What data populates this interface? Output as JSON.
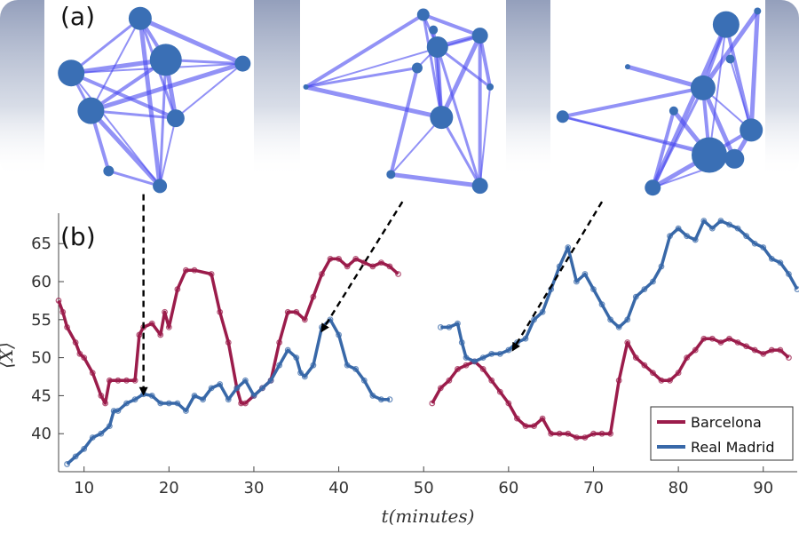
{
  "panels": {
    "a_label": "(a)",
    "b_label": "(b)"
  },
  "colors": {
    "barcelona": "#9b1c4b",
    "real_madrid": "#3868a8",
    "network_edge": "#4a4af0",
    "network_node": "#3a6fb5",
    "header_band": "#8e9ab8"
  },
  "networks": [
    {
      "nodes": [
        [
          0.45,
          0.06,
          13
        ],
        [
          0.1,
          0.35,
          15
        ],
        [
          0.58,
          0.28,
          18
        ],
        [
          0.97,
          0.3,
          9
        ],
        [
          0.2,
          0.55,
          15
        ],
        [
          0.63,
          0.59,
          10
        ],
        [
          0.29,
          0.87,
          6
        ],
        [
          0.55,
          0.95,
          8
        ]
      ],
      "edges": [
        [
          0,
          1
        ],
        [
          0,
          2
        ],
        [
          0,
          3
        ],
        [
          1,
          2
        ],
        [
          1,
          3
        ],
        [
          2,
          3
        ],
        [
          0,
          4
        ],
        [
          1,
          4
        ],
        [
          2,
          4
        ],
        [
          2,
          5
        ],
        [
          1,
          5
        ],
        [
          4,
          5
        ],
        [
          4,
          6
        ],
        [
          4,
          7
        ],
        [
          5,
          7
        ],
        [
          6,
          7
        ],
        [
          1,
          7
        ],
        [
          0,
          7
        ],
        [
          3,
          4
        ],
        [
          2,
          7
        ],
        [
          0,
          5
        ],
        [
          3,
          5
        ]
      ]
    },
    {
      "nodes": [
        [
          0.6,
          0.04,
          7
        ],
        [
          0.67,
          0.21,
          12
        ],
        [
          0.88,
          0.15,
          9
        ],
        [
          0.57,
          0.32,
          6
        ],
        [
          0.93,
          0.42,
          4
        ],
        [
          0.69,
          0.58,
          13
        ],
        [
          0.02,
          0.42,
          3
        ],
        [
          0.44,
          0.88,
          5
        ],
        [
          0.88,
          0.94,
          9
        ],
        [
          0.65,
          0.12,
          5
        ]
      ],
      "edges": [
        [
          0,
          1
        ],
        [
          0,
          2
        ],
        [
          1,
          2
        ],
        [
          1,
          3
        ],
        [
          1,
          5
        ],
        [
          2,
          5
        ],
        [
          2,
          4
        ],
        [
          6,
          0
        ],
        [
          6,
          5
        ],
        [
          6,
          3
        ],
        [
          5,
          7
        ],
        [
          5,
          8
        ],
        [
          7,
          8
        ],
        [
          1,
          8
        ],
        [
          2,
          8
        ],
        [
          4,
          8
        ],
        [
          3,
          7
        ],
        [
          0,
          5
        ],
        [
          9,
          5
        ],
        [
          1,
          4
        ],
        [
          6,
          2
        ]
      ]
    },
    {
      "nodes": [
        [
          0.83,
          0.1,
          15
        ],
        [
          0.98,
          0.03,
          4
        ],
        [
          0.72,
          0.43,
          14
        ],
        [
          0.58,
          0.55,
          5
        ],
        [
          0.75,
          0.78,
          20
        ],
        [
          0.87,
          0.8,
          11
        ],
        [
          0.95,
          0.65,
          13
        ],
        [
          0.48,
          0.95,
          9
        ],
        [
          0.05,
          0.58,
          7
        ],
        [
          0.36,
          0.32,
          3
        ],
        [
          0.85,
          0.28,
          5
        ]
      ],
      "edges": [
        [
          0,
          2
        ],
        [
          0,
          4
        ],
        [
          0,
          6
        ],
        [
          1,
          6
        ],
        [
          1,
          2
        ],
        [
          2,
          4
        ],
        [
          2,
          5
        ],
        [
          2,
          7
        ],
        [
          3,
          4
        ],
        [
          4,
          5
        ],
        [
          4,
          6
        ],
        [
          5,
          6
        ],
        [
          4,
          7
        ],
        [
          7,
          5
        ],
        [
          8,
          2
        ],
        [
          8,
          4
        ],
        [
          8,
          5
        ],
        [
          9,
          2
        ],
        [
          0,
          7
        ],
        [
          10,
          6
        ],
        [
          2,
          6
        ],
        [
          3,
          7
        ]
      ]
    }
  ],
  "arrows": [
    {
      "from_minute": 17.0,
      "from_value": 71.5,
      "to_minute": 17.0,
      "to_value": 45.2
    },
    {
      "from_minute": 47.5,
      "from_value": 70.5,
      "to_minute": 38.0,
      "to_value": 53.5
    },
    {
      "from_minute": 71.0,
      "from_value": 70.5,
      "to_minute": 60.5,
      "to_value": 51.0
    }
  ],
  "chart_data": {
    "type": "line",
    "title": "",
    "xlabel": "t(minutes)",
    "ylabel": "⟨X⟩",
    "xlim": [
      7,
      94
    ],
    "ylim": [
      35,
      69
    ],
    "xticks": [
      10,
      20,
      30,
      40,
      50,
      60,
      70,
      80,
      90
    ],
    "yticks": [
      40,
      45,
      50,
      55,
      60,
      65
    ],
    "legend": {
      "placement": "bottom-right",
      "entries": [
        "Barcelona",
        "Real Madrid"
      ]
    },
    "series": [
      {
        "name": "Barcelona",
        "segments": [
          [
            [
              7,
              57.5
            ],
            [
              7.5,
              56
            ],
            [
              8,
              54
            ],
            [
              9,
              52
            ],
            [
              9.5,
              50.5
            ],
            [
              10,
              50
            ],
            [
              11,
              48
            ],
            [
              12,
              45
            ],
            [
              12.5,
              44
            ],
            [
              13,
              47
            ],
            [
              14,
              47
            ],
            [
              15,
              47
            ],
            [
              16,
              47
            ],
            [
              16.5,
              53
            ],
            [
              17,
              54
            ],
            [
              18,
              54.5
            ],
            [
              19,
              53
            ],
            [
              19.5,
              56
            ],
            [
              20,
              54
            ],
            [
              21,
              59
            ],
            [
              22,
              61.5
            ],
            [
              23,
              61.5
            ],
            [
              25,
              61
            ],
            [
              26,
              56
            ],
            [
              27,
              52
            ],
            [
              28,
              46
            ],
            [
              28.5,
              44
            ],
            [
              29,
              44
            ],
            [
              30,
              45
            ],
            [
              31,
              46
            ],
            [
              32,
              47
            ],
            [
              33,
              52
            ],
            [
              34,
              56
            ],
            [
              35,
              56
            ],
            [
              36,
              55
            ],
            [
              37,
              58
            ],
            [
              38,
              61
            ],
            [
              39,
              63
            ],
            [
              40,
              63
            ],
            [
              41,
              62
            ],
            [
              42,
              63
            ],
            [
              43,
              62.5
            ],
            [
              44,
              62
            ],
            [
              45,
              62.5
            ],
            [
              46,
              62
            ],
            [
              47,
              61
            ]
          ],
          [
            [
              51,
              44
            ],
            [
              52,
              46
            ],
            [
              53,
              47
            ],
            [
              54,
              48.5
            ],
            [
              55,
              49
            ],
            [
              56,
              49.5
            ],
            [
              57,
              48.5
            ],
            [
              58,
              47
            ],
            [
              59,
              45.5
            ],
            [
              60,
              44
            ],
            [
              61,
              42
            ],
            [
              62,
              41
            ],
            [
              63,
              41
            ],
            [
              64,
              42
            ],
            [
              65,
              40
            ],
            [
              66,
              40
            ],
            [
              67,
              40
            ],
            [
              68,
              39.5
            ],
            [
              69,
              39.5
            ],
            [
              70,
              40
            ],
            [
              71,
              40
            ],
            [
              72,
              40
            ],
            [
              73,
              47
            ],
            [
              74,
              52
            ],
            [
              75,
              50
            ],
            [
              76,
              49
            ],
            [
              77,
              48
            ],
            [
              78,
              47
            ],
            [
              79,
              47
            ],
            [
              80,
              48
            ],
            [
              81,
              50
            ],
            [
              82,
              51
            ],
            [
              83,
              52.5
            ],
            [
              84,
              52.5
            ],
            [
              85,
              52
            ],
            [
              86,
              52.5
            ],
            [
              87,
              52
            ],
            [
              88,
              51.5
            ],
            [
              89,
              51
            ],
            [
              90,
              50.5
            ],
            [
              91,
              51
            ],
            [
              92,
              51
            ],
            [
              93,
              50
            ]
          ]
        ]
      },
      {
        "name": "Real Madrid",
        "segments": [
          [
            [
              8,
              36
            ],
            [
              9,
              37
            ],
            [
              10,
              38
            ],
            [
              11,
              39.5
            ],
            [
              12,
              40
            ],
            [
              13,
              41
            ],
            [
              13.5,
              43
            ],
            [
              14,
              43
            ],
            [
              15,
              44
            ],
            [
              16,
              44.5
            ],
            [
              17,
              45.2
            ],
            [
              18,
              45
            ],
            [
              19,
              44
            ],
            [
              20,
              44
            ],
            [
              21,
              44
            ],
            [
              22,
              43
            ],
            [
              23,
              45
            ],
            [
              24,
              44.5
            ],
            [
              25,
              46
            ],
            [
              26,
              46.5
            ],
            [
              27,
              44.5
            ],
            [
              28,
              46
            ],
            [
              29,
              47
            ],
            [
              30,
              45
            ],
            [
              31,
              46
            ],
            [
              32,
              47
            ],
            [
              33,
              49
            ],
            [
              34,
              51
            ],
            [
              35,
              50
            ],
            [
              35.5,
              48
            ],
            [
              36,
              47.5
            ],
            [
              37,
              49
            ],
            [
              38,
              54
            ],
            [
              39,
              55
            ],
            [
              40,
              53
            ],
            [
              41,
              49
            ],
            [
              42,
              48.5
            ],
            [
              43,
              47
            ],
            [
              44,
              45
            ],
            [
              45,
              44.5
            ],
            [
              46,
              44.5
            ]
          ],
          [
            [
              52,
              54
            ],
            [
              53,
              54
            ],
            [
              54,
              54.5
            ],
            [
              54.5,
              52
            ],
            [
              55,
              50
            ],
            [
              56,
              49.5
            ],
            [
              57,
              50
            ],
            [
              58,
              50.5
            ],
            [
              59,
              50.5
            ],
            [
              60,
              51
            ],
            [
              61,
              52
            ],
            [
              62,
              52.5
            ],
            [
              63,
              55
            ],
            [
              64,
              56
            ],
            [
              65,
              59
            ],
            [
              66,
              62
            ],
            [
              67,
              64.5
            ],
            [
              68,
              60
            ],
            [
              69,
              61
            ],
            [
              70,
              59
            ],
            [
              71,
              57
            ],
            [
              72,
              55
            ],
            [
              73,
              54
            ],
            [
              74,
              55
            ],
            [
              75,
              58
            ],
            [
              76,
              59
            ],
            [
              77,
              60
            ],
            [
              78,
              62
            ],
            [
              79,
              66
            ],
            [
              80,
              67
            ],
            [
              81,
              66
            ],
            [
              82,
              65.5
            ],
            [
              83,
              68
            ],
            [
              84,
              67
            ],
            [
              85,
              68
            ],
            [
              86,
              67.5
            ],
            [
              87,
              67
            ],
            [
              88,
              66
            ],
            [
              89,
              65
            ],
            [
              90,
              64.5
            ],
            [
              91,
              63
            ],
            [
              92,
              62.5
            ],
            [
              93,
              61
            ],
            [
              94,
              59
            ]
          ]
        ]
      }
    ]
  }
}
